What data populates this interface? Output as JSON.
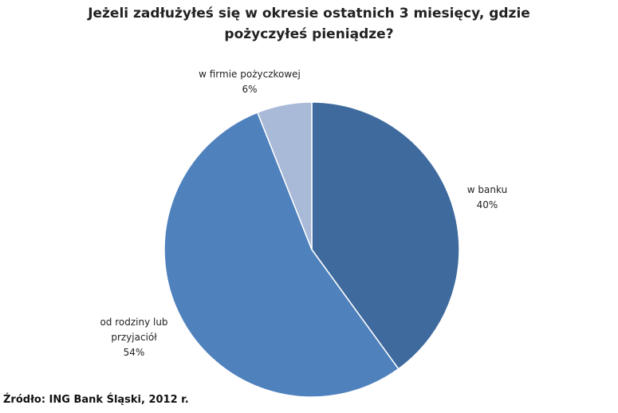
{
  "chart_data": {
    "type": "pie",
    "title": "Jeżeli zadłużyłeś się w okresie ostatnich  3 miesięcy, gdzie pożyczyłeś pieniądze?",
    "categories": [
      "w banku",
      "od rodziny lub przyjaciół",
      "w firmie pożyczkowej"
    ],
    "values": [
      40,
      54,
      6
    ],
    "value_labels": [
      "40%",
      "54%",
      "6%"
    ],
    "colors": [
      "#3f6a9e",
      "#4f81bd",
      "#a9b9d8"
    ],
    "source": "Źródło: ING Bank Śląski, 2012 r."
  }
}
